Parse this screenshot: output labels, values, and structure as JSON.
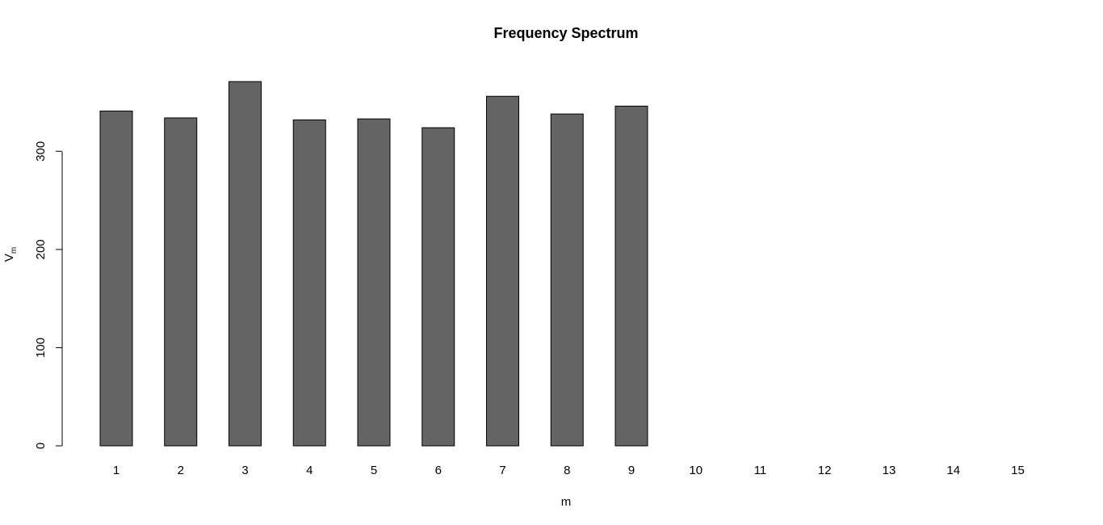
{
  "chart_data": {
    "type": "bar",
    "title": "Frequency Spectrum",
    "xlabel": "m",
    "ylabel_main": "V",
    "ylabel_sub": "m",
    "categories": [
      "1",
      "2",
      "3",
      "4",
      "5",
      "6",
      "7",
      "8",
      "9",
      "10",
      "11",
      "12",
      "13",
      "14",
      "15"
    ],
    "values": [
      341,
      334,
      371,
      332,
      333,
      324,
      356,
      338,
      346,
      0,
      0,
      0,
      0,
      0,
      0
    ],
    "ylim": [
      0,
      371
    ],
    "yticks": [
      0,
      100,
      200,
      300
    ],
    "grid": false,
    "bar_color": "#646464"
  }
}
